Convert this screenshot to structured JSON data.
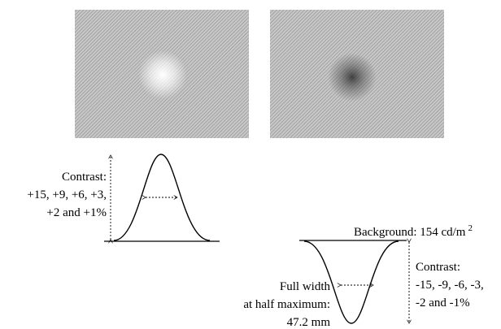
{
  "left_panel": {
    "contrast_label": "Contrast:",
    "contrast_values_line1": "+15, +9, +6, +3,",
    "contrast_values_line2": "+2 and +1%"
  },
  "right_panel": {
    "background": {
      "text": "Background: 154 cd/m",
      "superscript": "2"
    },
    "fwhm_line1": "Full width",
    "fwhm_line2": "at half maximum:",
    "fwhm_line3": "47.2 mm",
    "contrast_label": "Contrast:",
    "contrast_values_line1": "-15, -9, -6, -3,",
    "contrast_values_line2": "-2 and -1%"
  }
}
